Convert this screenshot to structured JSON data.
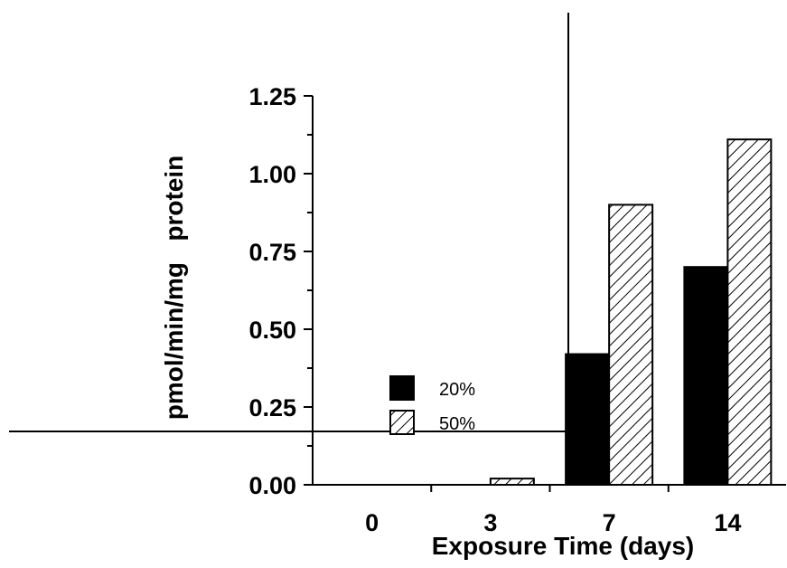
{
  "chart_data": {
    "type": "bar",
    "title": "",
    "xlabel": "Exposure Time (days)",
    "ylabel": "pmol/min/mg   protein",
    "categories": [
      "0",
      "3",
      "7",
      "14"
    ],
    "series": [
      {
        "name": "20%",
        "values": [
          0,
          0,
          0.42,
          0.7
        ],
        "color": "#000000",
        "pattern": "solid"
      },
      {
        "name": "50%",
        "values": [
          0,
          0.02,
          0.9,
          1.11
        ],
        "color": "#ffffff",
        "pattern": "diagonal-hatch"
      }
    ],
    "ylim": [
      0,
      1.25
    ],
    "yticks": [
      "0.00",
      "0.25",
      "0.50",
      "0.75",
      "1.00",
      "1.25"
    ],
    "grid": false,
    "legend_position": "left-center"
  }
}
